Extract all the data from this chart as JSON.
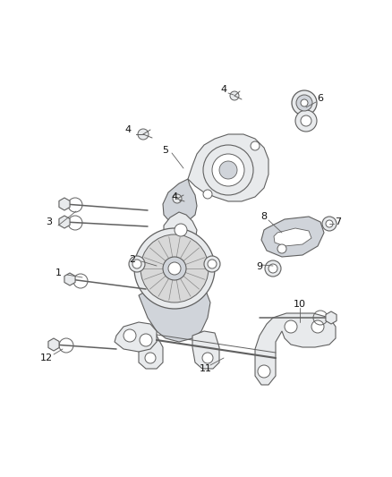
{
  "background_color": "#ffffff",
  "line_color": "#606060",
  "label_color": "#111111",
  "figsize": [
    4.38,
    5.33
  ],
  "dpi": 100,
  "label_fontsize": 8.0,
  "lw_main": 0.8,
  "fill_light": "#e8eaec",
  "fill_medium": "#d0d4da",
  "fill_dark": "#b8bcc4"
}
